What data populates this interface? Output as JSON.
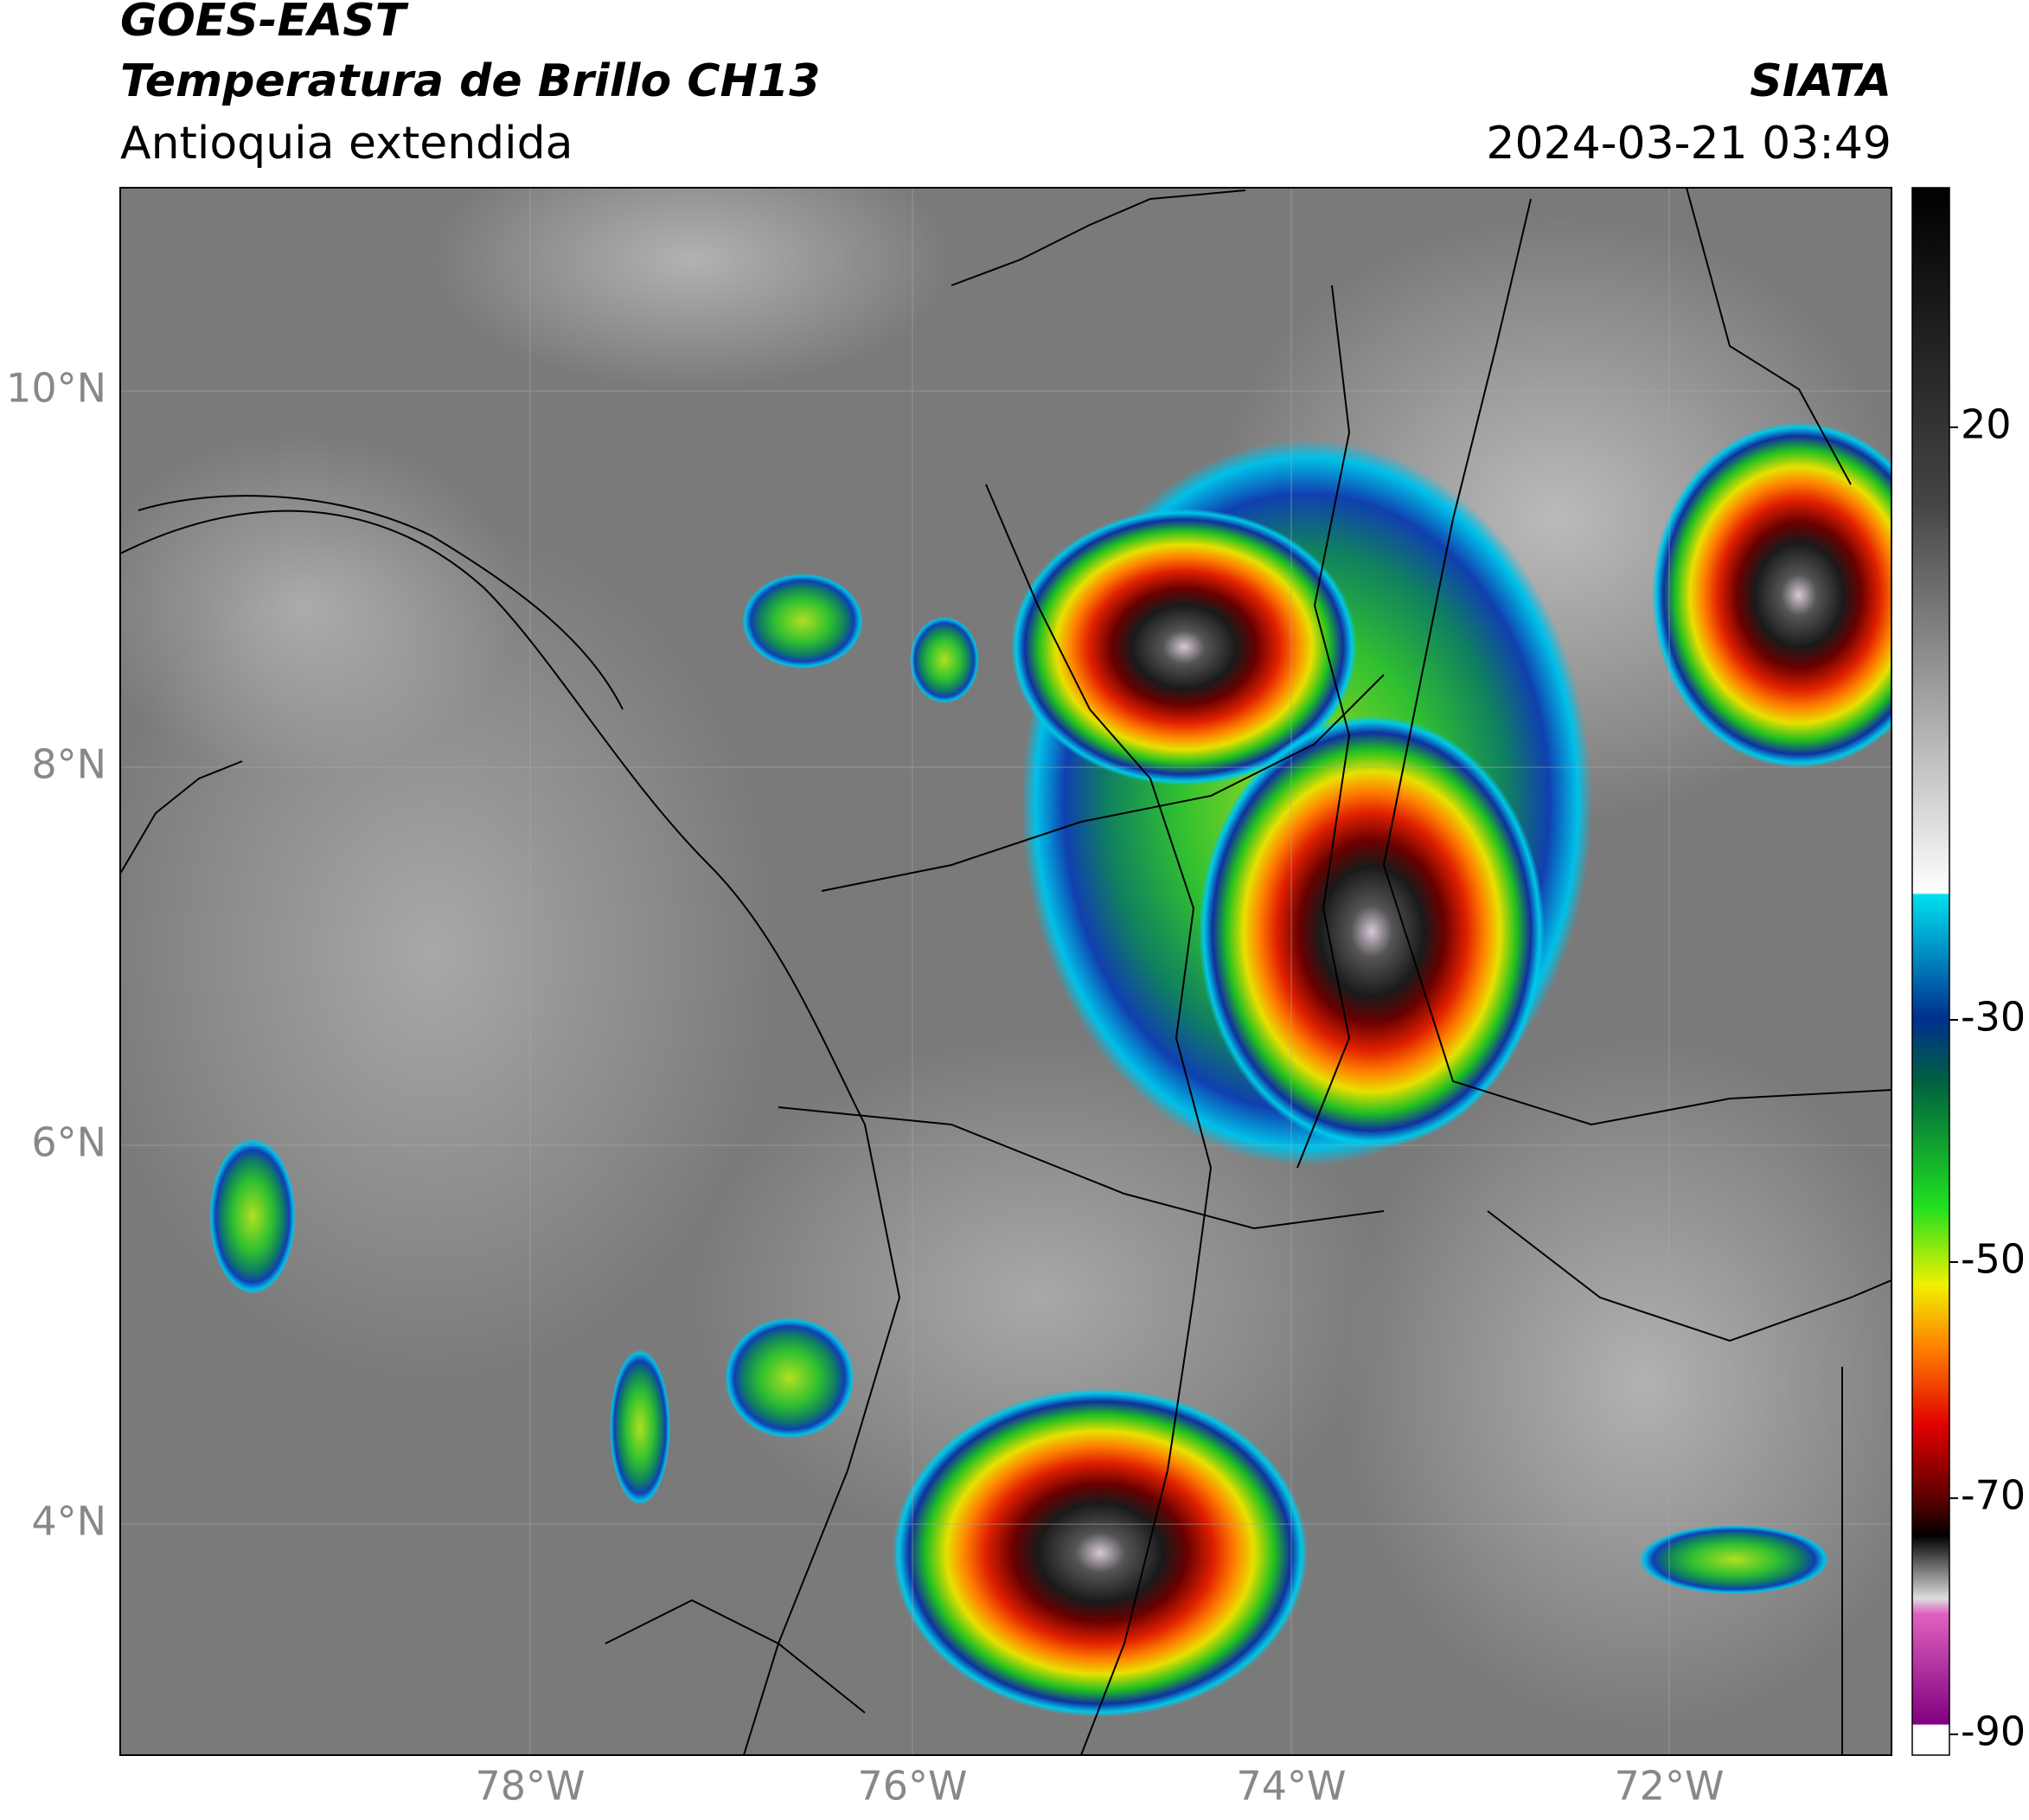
{
  "header": {
    "title": "GOES-EAST",
    "subtitle": "Temperatura de Brillo CH13",
    "region": "Antioquia extendida",
    "source": "SIATA",
    "datetime": "2024-03-21 03:49"
  },
  "map": {
    "lon_labels": [
      "78°W",
      "76°W",
      "74°W",
      "72°W"
    ],
    "lat_labels": [
      "10°N",
      "8°N",
      "6°N",
      "4°N"
    ]
  },
  "colorbar": {
    "labels": [
      "20",
      "-30",
      "-50",
      "-70",
      "-90"
    ]
  }
}
